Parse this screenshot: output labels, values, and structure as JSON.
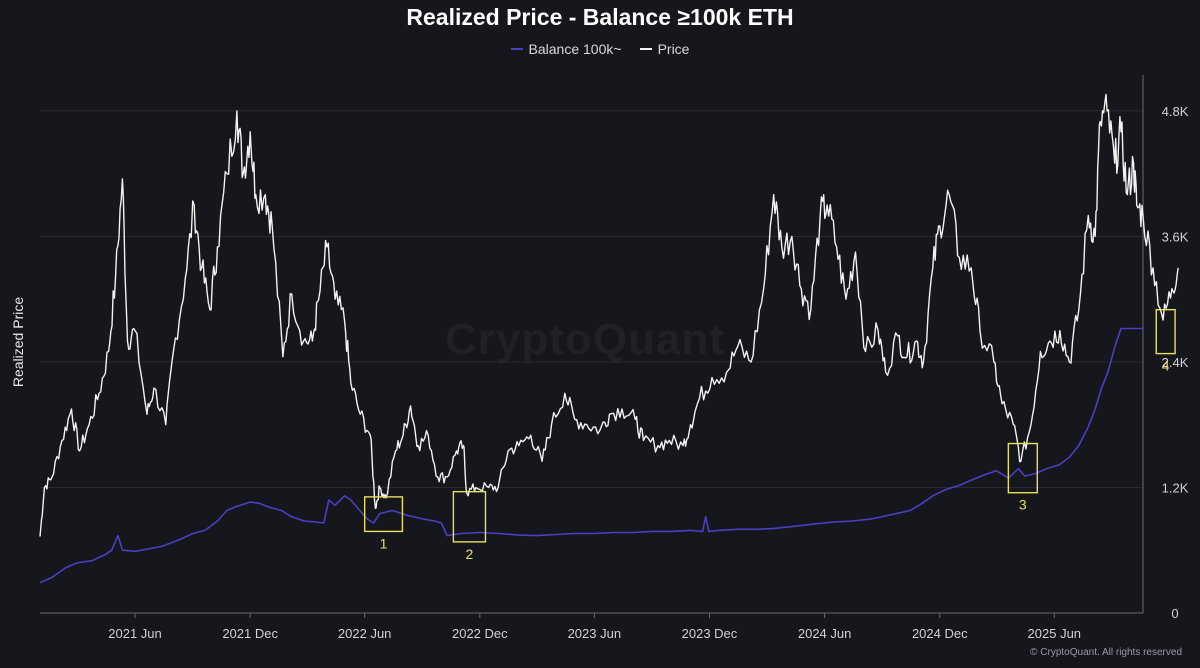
{
  "chart_data": {
    "type": "line",
    "title": "Realized Price - Balance ≥100k ETH",
    "ylabel": "Realized Price",
    "ylim": [
      0,
      5000
    ],
    "grid": "horizontal",
    "legend_placement": "top-center",
    "x_ticks": [
      "2021 Jun",
      "2021 Dec",
      "2022 Jun",
      "2022 Dec",
      "2023 Jun",
      "2023 Dec",
      "2024 Jun",
      "2024 Dec",
      "2025 Jun"
    ],
    "y_ticks": [
      {
        "value": 0,
        "label": "0"
      },
      {
        "value": 1200,
        "label": "1.2K"
      },
      {
        "value": 2400,
        "label": "2.4K"
      },
      {
        "value": 3600,
        "label": "3.6K"
      },
      {
        "value": 4800,
        "label": "4.8K"
      }
    ],
    "x_range": [
      "2021-01-01",
      "2025-10-20"
    ],
    "series": [
      {
        "name": "Balance 100k~",
        "color": "#4b3fc4",
        "points": [
          [
            "2021-01-01",
            290
          ],
          [
            "2021-01-20",
            340
          ],
          [
            "2021-02-10",
            430
          ],
          [
            "2021-03-01",
            480
          ],
          [
            "2021-03-25",
            500
          ],
          [
            "2021-04-15",
            560
          ],
          [
            "2021-04-25",
            600
          ],
          [
            "2021-05-05",
            740
          ],
          [
            "2021-05-12",
            600
          ],
          [
            "2021-06-01",
            590
          ],
          [
            "2021-06-20",
            610
          ],
          [
            "2021-07-15",
            640
          ],
          [
            "2021-08-10",
            700
          ],
          [
            "2021-09-01",
            760
          ],
          [
            "2021-09-20",
            790
          ],
          [
            "2021-10-10",
            880
          ],
          [
            "2021-10-25",
            980
          ],
          [
            "2021-11-10",
            1020
          ],
          [
            "2021-12-01",
            1060
          ],
          [
            "2021-12-15",
            1050
          ],
          [
            "2022-01-01",
            1010
          ],
          [
            "2022-01-20",
            980
          ],
          [
            "2022-02-05",
            920
          ],
          [
            "2022-02-25",
            880
          ],
          [
            "2022-03-15",
            870
          ],
          [
            "2022-03-28",
            860
          ],
          [
            "2022-04-05",
            1080
          ],
          [
            "2022-04-15",
            1030
          ],
          [
            "2022-04-30",
            1120
          ],
          [
            "2022-05-10",
            1080
          ],
          [
            "2022-05-20",
            1010
          ],
          [
            "2022-06-05",
            900
          ],
          [
            "2022-06-15",
            860
          ],
          [
            "2022-06-25",
            950
          ],
          [
            "2022-07-15",
            980
          ],
          [
            "2022-08-10",
            930
          ],
          [
            "2022-09-01",
            900
          ],
          [
            "2022-09-20",
            880
          ],
          [
            "2022-10-01",
            860
          ],
          [
            "2022-10-10",
            740
          ],
          [
            "2022-11-01",
            760
          ],
          [
            "2022-12-01",
            770
          ],
          [
            "2023-01-01",
            760
          ],
          [
            "2023-02-01",
            745
          ],
          [
            "2023-03-01",
            740
          ],
          [
            "2023-04-01",
            750
          ],
          [
            "2023-05-01",
            760
          ],
          [
            "2023-06-01",
            760
          ],
          [
            "2023-07-01",
            770
          ],
          [
            "2023-08-01",
            770
          ],
          [
            "2023-09-01",
            780
          ],
          [
            "2023-10-01",
            780
          ],
          [
            "2023-11-01",
            790
          ],
          [
            "2023-11-20",
            780
          ],
          [
            "2023-11-25",
            920
          ],
          [
            "2023-11-30",
            780
          ],
          [
            "2023-12-15",
            790
          ],
          [
            "2024-01-15",
            800
          ],
          [
            "2024-02-15",
            800
          ],
          [
            "2024-03-15",
            810
          ],
          [
            "2024-04-15",
            830
          ],
          [
            "2024-05-15",
            850
          ],
          [
            "2024-06-15",
            870
          ],
          [
            "2024-07-15",
            880
          ],
          [
            "2024-08-15",
            900
          ],
          [
            "2024-09-15",
            940
          ],
          [
            "2024-10-15",
            980
          ],
          [
            "2024-11-01",
            1040
          ],
          [
            "2024-11-20",
            1120
          ],
          [
            "2024-12-10",
            1180
          ],
          [
            "2025-01-01",
            1220
          ],
          [
            "2025-01-20",
            1270
          ],
          [
            "2025-02-10",
            1320
          ],
          [
            "2025-03-01",
            1360
          ],
          [
            "2025-03-20",
            1290
          ],
          [
            "2025-04-05",
            1380
          ],
          [
            "2025-04-15",
            1310
          ],
          [
            "2025-05-01",
            1330
          ],
          [
            "2025-05-20",
            1380
          ],
          [
            "2025-06-10",
            1420
          ],
          [
            "2025-06-25",
            1490
          ],
          [
            "2025-07-10",
            1600
          ],
          [
            "2025-07-25",
            1780
          ],
          [
            "2025-08-05",
            1950
          ],
          [
            "2025-08-15",
            2150
          ],
          [
            "2025-08-25",
            2300
          ],
          [
            "2025-09-05",
            2540
          ],
          [
            "2025-09-15",
            2720
          ],
          [
            "2025-10-20",
            2720
          ]
        ]
      },
      {
        "name": "Price",
        "color": "#f2f2f2",
        "points": [
          [
            "2021-01-01",
            730
          ],
          [
            "2021-01-08",
            1200
          ],
          [
            "2021-01-20",
            1300
          ],
          [
            "2021-02-05",
            1650
          ],
          [
            "2021-02-20",
            1950
          ],
          [
            "2021-03-05",
            1550
          ],
          [
            "2021-03-20",
            1800
          ],
          [
            "2021-04-05",
            2100
          ],
          [
            "2021-04-20",
            2500
          ],
          [
            "2021-05-01",
            3200
          ],
          [
            "2021-05-12",
            4150
          ],
          [
            "2021-05-20",
            2600
          ],
          [
            "2021-06-01",
            2700
          ],
          [
            "2021-06-20",
            1900
          ],
          [
            "2021-07-01",
            2150
          ],
          [
            "2021-07-20",
            1800
          ],
          [
            "2021-08-01",
            2500
          ],
          [
            "2021-08-20",
            3200
          ],
          [
            "2021-09-03",
            3900
          ],
          [
            "2021-09-15",
            3300
          ],
          [
            "2021-09-28",
            2900
          ],
          [
            "2021-10-10",
            3500
          ],
          [
            "2021-10-25",
            4200
          ],
          [
            "2021-11-10",
            4800
          ],
          [
            "2021-11-20",
            4200
          ],
          [
            "2021-12-01",
            4600
          ],
          [
            "2021-12-10",
            4000
          ],
          [
            "2021-12-25",
            4000
          ],
          [
            "2022-01-05",
            3700
          ],
          [
            "2022-01-22",
            2450
          ],
          [
            "2022-02-05",
            3050
          ],
          [
            "2022-02-24",
            2600
          ],
          [
            "2022-03-10",
            2600
          ],
          [
            "2022-03-20",
            3000
          ],
          [
            "2022-04-02",
            3500
          ],
          [
            "2022-04-15",
            3000
          ],
          [
            "2022-04-30",
            2800
          ],
          [
            "2022-05-10",
            2200
          ],
          [
            "2022-05-25",
            1900
          ],
          [
            "2022-06-10",
            1700
          ],
          [
            "2022-06-18",
            1000
          ],
          [
            "2022-06-25",
            1200
          ],
          [
            "2022-07-05",
            1100
          ],
          [
            "2022-07-20",
            1550
          ],
          [
            "2022-08-01",
            1700
          ],
          [
            "2022-08-13",
            1980
          ],
          [
            "2022-08-25",
            1600
          ],
          [
            "2022-09-10",
            1700
          ],
          [
            "2022-09-25",
            1300
          ],
          [
            "2022-10-10",
            1300
          ],
          [
            "2022-10-25",
            1550
          ],
          [
            "2022-11-05",
            1600
          ],
          [
            "2022-11-10",
            1150
          ],
          [
            "2022-11-25",
            1200
          ],
          [
            "2022-12-15",
            1200
          ],
          [
            "2022-12-30",
            1200
          ],
          [
            "2023-01-15",
            1550
          ],
          [
            "2023-02-01",
            1600
          ],
          [
            "2023-02-20",
            1700
          ],
          [
            "2023-03-10",
            1450
          ],
          [
            "2023-03-25",
            1800
          ],
          [
            "2023-04-15",
            2100
          ],
          [
            "2023-05-01",
            1850
          ],
          [
            "2023-05-20",
            1800
          ],
          [
            "2023-06-10",
            1750
          ],
          [
            "2023-06-25",
            1900
          ],
          [
            "2023-07-15",
            1950
          ],
          [
            "2023-08-05",
            1850
          ],
          [
            "2023-08-18",
            1650
          ],
          [
            "2023-09-10",
            1600
          ],
          [
            "2023-09-28",
            1650
          ],
          [
            "2023-10-20",
            1600
          ],
          [
            "2023-11-01",
            1800
          ],
          [
            "2023-11-15",
            2050
          ],
          [
            "2023-12-05",
            2250
          ],
          [
            "2023-12-28",
            2300
          ],
          [
            "2024-01-15",
            2550
          ],
          [
            "2024-02-05",
            2400
          ],
          [
            "2024-02-25",
            3100
          ],
          [
            "2024-03-12",
            4000
          ],
          [
            "2024-03-25",
            3500
          ],
          [
            "2024-04-10",
            3600
          ],
          [
            "2024-04-25",
            3100
          ],
          [
            "2024-05-10",
            2900
          ],
          [
            "2024-05-25",
            3800
          ],
          [
            "2024-06-05",
            3900
          ],
          [
            "2024-06-20",
            3500
          ],
          [
            "2024-07-05",
            3000
          ],
          [
            "2024-07-20",
            3450
          ],
          [
            "2024-08-05",
            2500
          ],
          [
            "2024-08-25",
            2700
          ],
          [
            "2024-09-06",
            2300
          ],
          [
            "2024-09-25",
            2650
          ],
          [
            "2024-10-10",
            2450
          ],
          [
            "2024-10-25",
            2600
          ],
          [
            "2024-11-05",
            2400
          ],
          [
            "2024-11-20",
            3300
          ],
          [
            "2024-12-01",
            3700
          ],
          [
            "2024-12-16",
            4000
          ],
          [
            "2025-01-01",
            3400
          ],
          [
            "2025-01-20",
            3300
          ],
          [
            "2025-02-03",
            2700
          ],
          [
            "2025-02-25",
            2400
          ],
          [
            "2025-03-10",
            2000
          ],
          [
            "2025-03-28",
            1800
          ],
          [
            "2025-04-09",
            1450
          ],
          [
            "2025-04-25",
            1800
          ],
          [
            "2025-05-10",
            2500
          ],
          [
            "2025-05-25",
            2600
          ],
          [
            "2025-06-10",
            2700
          ],
          [
            "2025-06-25",
            2400
          ],
          [
            "2025-07-10",
            2900
          ],
          [
            "2025-07-25",
            3800
          ],
          [
            "2025-08-05",
            3600
          ],
          [
            "2025-08-13",
            4700
          ],
          [
            "2025-08-24",
            4800
          ],
          [
            "2025-09-05",
            4300
          ],
          [
            "2025-09-15",
            4600
          ],
          [
            "2025-09-25",
            4000
          ],
          [
            "2025-10-05",
            4300
          ],
          [
            "2025-10-10",
            3900
          ],
          [
            "2025-10-20",
            3800
          ],
          [
            "2025-11-05",
            3300
          ],
          [
            "2025-11-21",
            2800
          ],
          [
            "2025-12-05",
            3100
          ],
          [
            "2025-12-15",
            3300
          ]
        ]
      }
    ],
    "annotations": [
      {
        "label": "1",
        "x_start": "2022-06-01",
        "x_end": "2022-07-31",
        "y_low": 780,
        "y_high": 1110
      },
      {
        "label": "2",
        "x_start": "2022-10-20",
        "x_end": "2022-12-10",
        "y_low": 680,
        "y_high": 1160
      },
      {
        "label": "3",
        "x_start": "2025-03-20",
        "x_end": "2025-05-05",
        "y_low": 1150,
        "y_high": 1620
      },
      {
        "label": "4",
        "x_start": "2025-11-10",
        "x_end": "2025-12-10",
        "y_low": 2480,
        "y_high": 2900
      }
    ],
    "annotation_color": "#e8e05a"
  },
  "watermark": "CryptoQuant",
  "copyright": "© CryptoQuant. All rights reserved"
}
